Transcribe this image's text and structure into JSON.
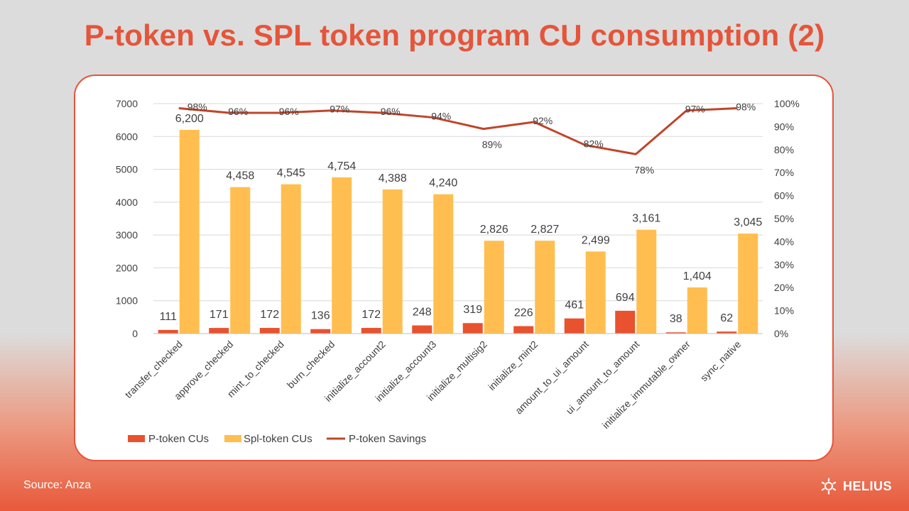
{
  "title": "P-token vs. SPL token program CU consumption (2)",
  "source": "Source: Anza",
  "brand": "HELIUS",
  "colors": {
    "accent": "#e5553a",
    "ptoken": "#e8522e",
    "spl": "#ffbe4f",
    "savings": "#c0452a",
    "grid": "#d9d9d9",
    "text": "#404040"
  },
  "chart_data": {
    "type": "bar",
    "categories": [
      "transfer_checked",
      "approve_checked",
      "mint_to_checked",
      "burn_checked",
      "initialize_account2",
      "initialize_account3",
      "initialize_multisig2",
      "initialize_mint2",
      "amount_to_ui_amount",
      "ui_amount_to_amount",
      "initialize_immutable_owner",
      "sync_native"
    ],
    "series": [
      {
        "name": "P-token CUs",
        "axis": "left",
        "type": "bar",
        "values": [
          111,
          171,
          172,
          136,
          172,
          248,
          319,
          226,
          461,
          694,
          38,
          62
        ],
        "labels": [
          "111",
          "171",
          "172",
          "136",
          "172",
          "248",
          "319",
          "226",
          "461",
          "694",
          "38",
          "62"
        ]
      },
      {
        "name": "Spl-token CUs",
        "axis": "left",
        "type": "bar",
        "values": [
          6200,
          4458,
          4545,
          4754,
          4388,
          4240,
          2826,
          2827,
          2499,
          3161,
          1404,
          3045
        ],
        "labels": [
          "6,200",
          "4,458",
          "4,545",
          "4,754",
          "4,388",
          "4,240",
          "2,826",
          "2,827",
          "2,499",
          "3,161",
          "1,404",
          "3,045"
        ]
      },
      {
        "name": "P-token Savings",
        "axis": "right",
        "type": "line",
        "values": [
          98,
          96,
          96,
          97,
          96,
          94,
          89,
          92,
          82,
          78,
          97,
          98
        ],
        "labels": [
          "98%",
          "96%",
          "96%",
          "97%",
          "96%",
          "94%",
          "89%",
          "92%",
          "82%",
          "78%",
          "97%",
          "98%"
        ]
      }
    ],
    "ylim": [
      0,
      7000
    ],
    "yticks": [
      "0",
      "1000",
      "2000",
      "3000",
      "4000",
      "5000",
      "6000",
      "7000"
    ],
    "y2lim": [
      0,
      100
    ],
    "y2ticks": [
      "0%",
      "10%",
      "20%",
      "30%",
      "40%",
      "50%",
      "60%",
      "70%",
      "80%",
      "90%",
      "100%"
    ],
    "legend": "bottom-left",
    "grid": true
  }
}
